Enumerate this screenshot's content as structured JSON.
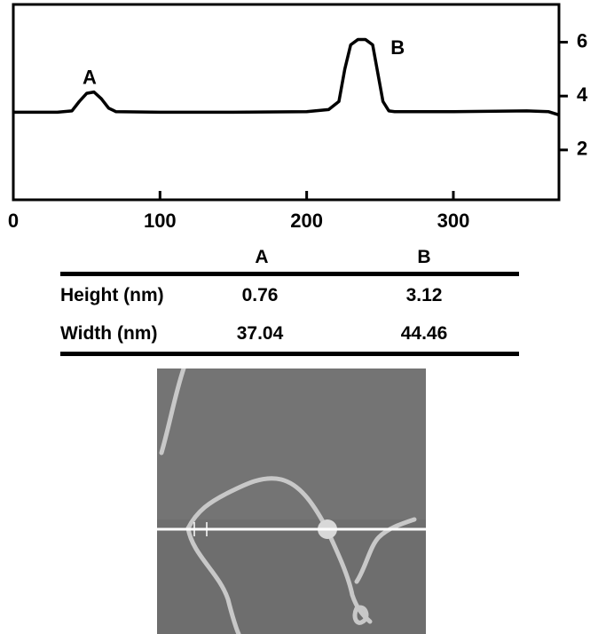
{
  "chart_data": {
    "type": "line",
    "x": [
      0,
      30,
      40,
      45,
      50,
      55,
      60,
      65,
      70,
      100,
      150,
      200,
      215,
      222,
      226,
      230,
      235,
      240,
      245,
      248,
      252,
      256,
      260,
      300,
      350,
      365,
      372
    ],
    "values": [
      3.4,
      3.4,
      3.45,
      3.8,
      4.1,
      4.15,
      3.9,
      3.55,
      3.42,
      3.4,
      3.4,
      3.42,
      3.5,
      3.8,
      5.0,
      5.9,
      6.1,
      6.1,
      5.9,
      5.0,
      3.8,
      3.45,
      3.42,
      3.42,
      3.45,
      3.42,
      3.3
    ],
    "color": "#000000",
    "xlim": [
      0,
      372
    ],
    "xticks": [
      0,
      100,
      200,
      300
    ],
    "y2lim": [
      0.15,
      7.4
    ],
    "y2ticks": [
      2,
      4,
      6
    ],
    "annotations": [
      {
        "text": "A",
        "x": 52,
        "y": 4.65
      },
      {
        "text": "B",
        "x": 262,
        "y": 5.75
      }
    ]
  },
  "table": {
    "columns": [
      "A",
      "B"
    ],
    "rows": [
      {
        "label": "Height (nm)",
        "cells": [
          "0.76",
          "3.12"
        ]
      },
      {
        "label": "Width (nm)",
        "cells": [
          "37.04",
          "44.46"
        ]
      }
    ]
  }
}
